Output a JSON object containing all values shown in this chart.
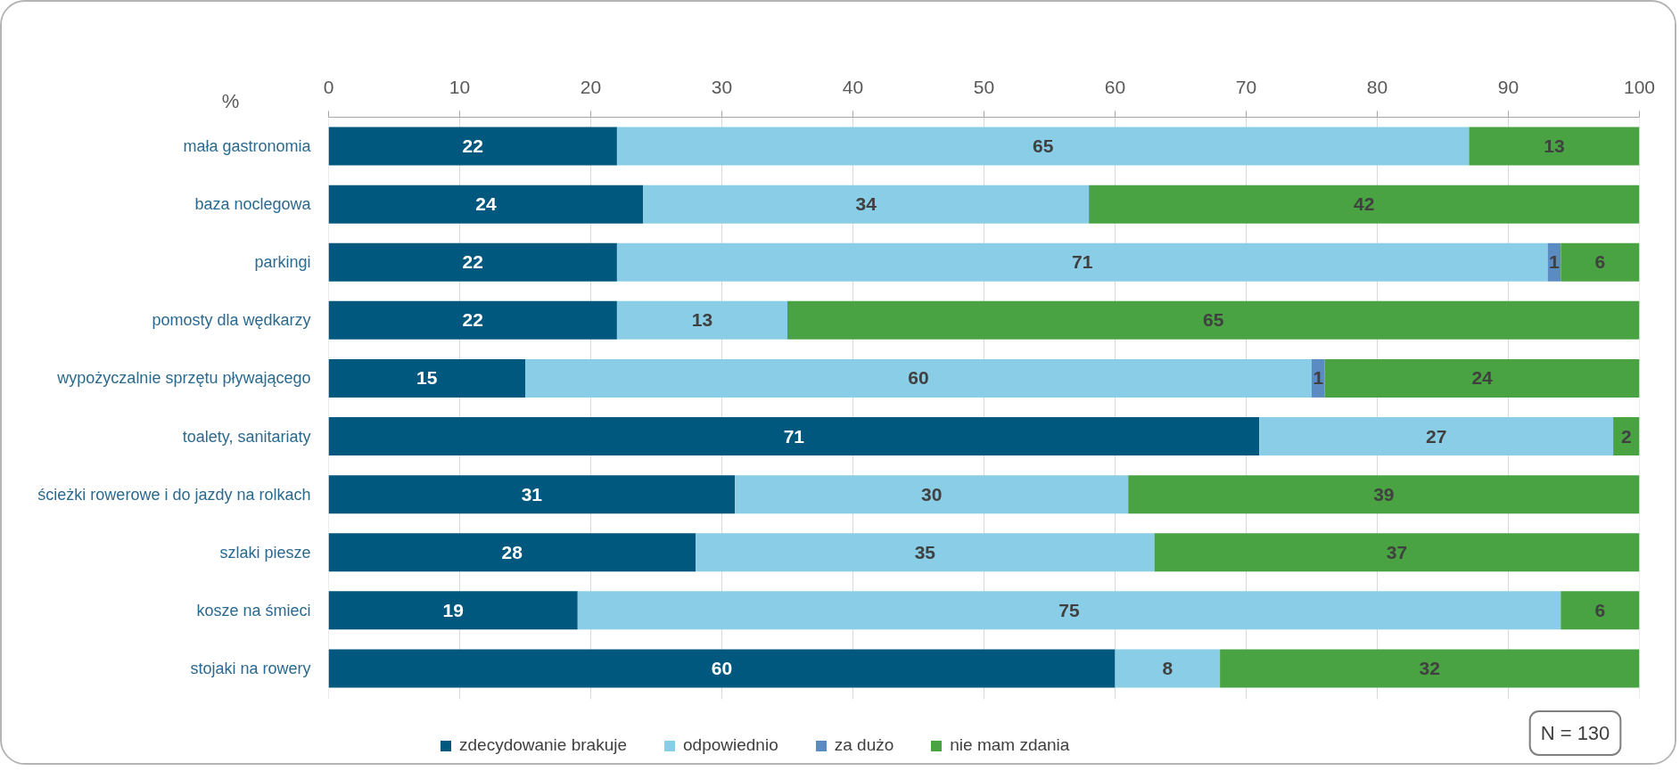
{
  "chart_data": {
    "type": "bar",
    "orientation": "horizontal",
    "stacked": true,
    "xlabel": "%",
    "categories": [
      "mała gastronomia",
      "baza noclegowa",
      "parkingi",
      "pomosty dla wędkarzy",
      "wypożyczalnie sprzętu pływającego",
      "toalety, sanitariaty",
      "ścieżki rowerowe i do jazdy na rolkach",
      "szlaki piesze",
      "kosze na śmieci",
      "stojaki na rowery"
    ],
    "series": [
      {
        "name": "zdecydowanie brakuje",
        "color": "#00587e",
        "values": [
          22,
          24,
          22,
          22,
          15,
          71,
          31,
          28,
          19,
          60
        ]
      },
      {
        "name": "odpowiednio",
        "color": "#89cde6",
        "values": [
          65,
          34,
          71,
          13,
          60,
          27,
          30,
          35,
          75,
          8
        ]
      },
      {
        "name": "za dużo",
        "color": "#5b8bc3",
        "values": [
          null,
          null,
          1,
          null,
          1,
          null,
          null,
          null,
          null,
          null
        ]
      },
      {
        "name": "nie mam zdania",
        "color": "#4aa343",
        "values": [
          13,
          42,
          6,
          65,
          24,
          2,
          39,
          37,
          6,
          32
        ]
      }
    ],
    "xlim": [
      0,
      100
    ],
    "xticks": [
      0,
      10,
      20,
      30,
      40,
      50,
      60,
      70,
      80,
      90,
      100
    ],
    "grid": "x",
    "legend": "bottom",
    "data_labels": true,
    "annotations": [
      "N = 130"
    ]
  }
}
